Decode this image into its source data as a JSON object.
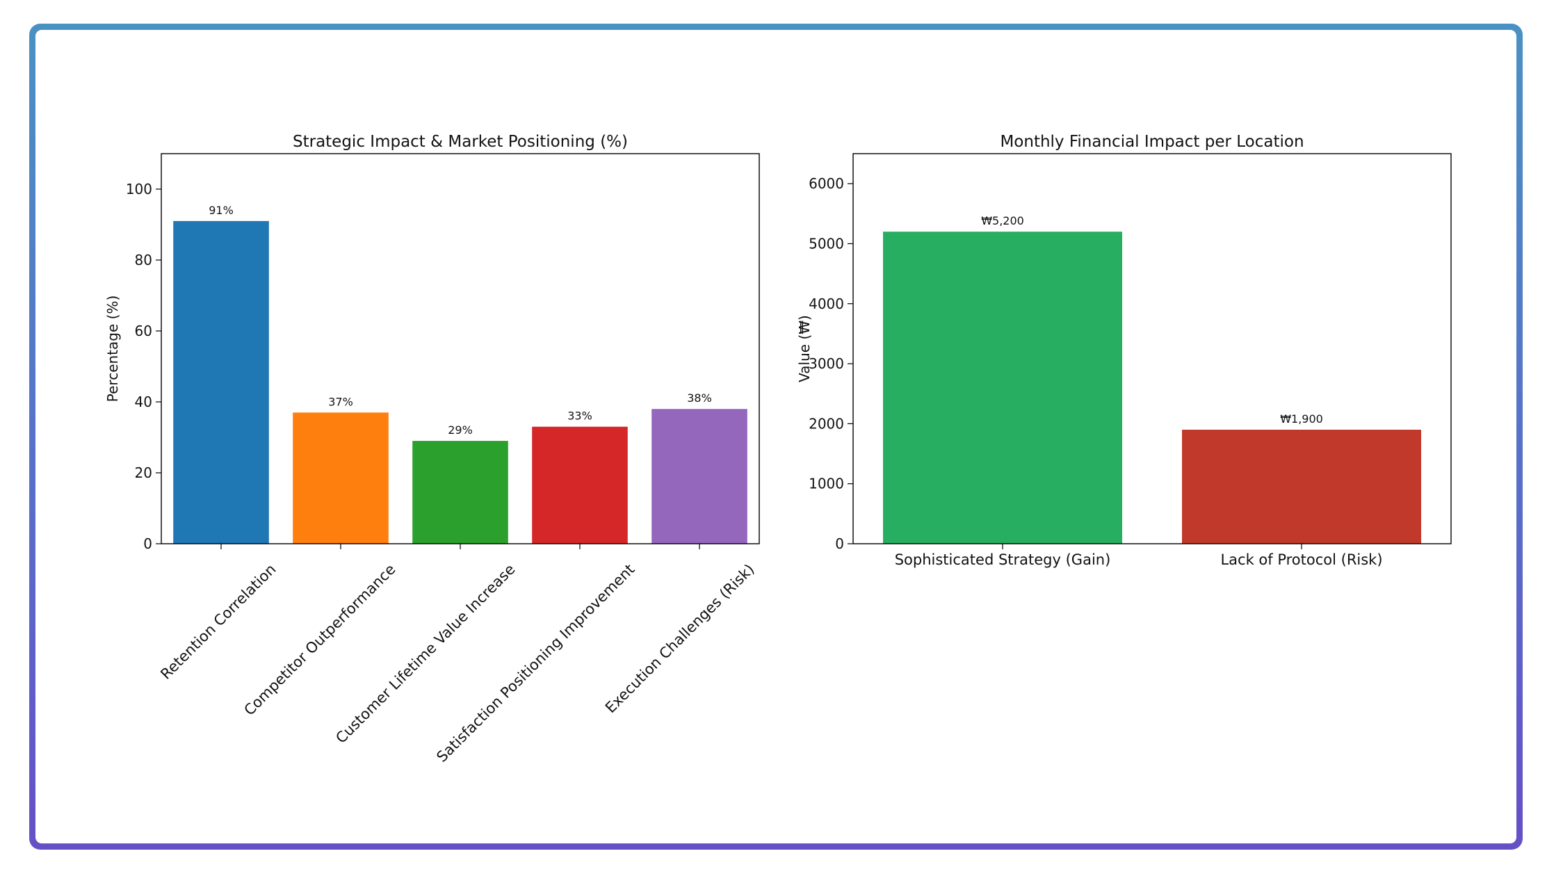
{
  "chart_data": [
    {
      "type": "bar",
      "title": "Strategic Impact & Market Positioning (%)",
      "xlabel": "",
      "ylabel": "Percentage (%)",
      "ylim": [
        0,
        110
      ],
      "yticks": [
        0,
        20,
        40,
        60,
        80,
        100
      ],
      "categories": [
        "Retention Correlation",
        "Competitor Outperformance",
        "Customer Lifetime Value Increase",
        "Satisfaction Positioning Improvement",
        "Execution Challenges (Risk)"
      ],
      "values": [
        91,
        37,
        29,
        33,
        38
      ],
      "data_labels": [
        "91%",
        "37%",
        "29%",
        "33%",
        "38%"
      ],
      "colors": [
        "#1f77b4",
        "#ff7f0e",
        "#2ca02c",
        "#d62728",
        "#9467bd"
      ],
      "grid": false
    },
    {
      "type": "bar",
      "title": "Monthly Financial Impact per Location",
      "xlabel": "",
      "ylabel": "Value (₩)",
      "ylim": [
        0,
        6500
      ],
      "yticks": [
        0,
        1000,
        2000,
        3000,
        4000,
        5000,
        6000
      ],
      "categories": [
        "Sophisticated Strategy (Gain)",
        "Lack of Protocol (Risk)"
      ],
      "values": [
        5200,
        1900
      ],
      "data_labels": [
        "₩5,200",
        "₩1,900"
      ],
      "colors": [
        "#27ae60",
        "#c0392b"
      ],
      "grid": false
    }
  ]
}
